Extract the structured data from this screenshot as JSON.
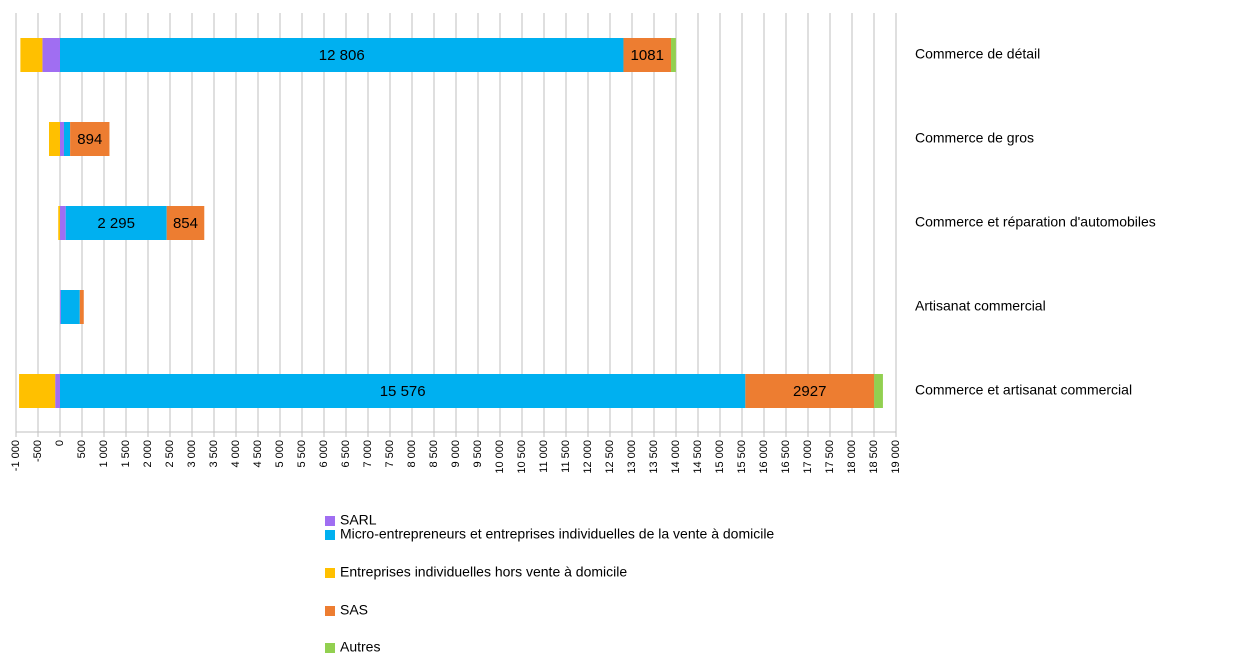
{
  "chart_data": {
    "type": "bar",
    "orientation": "horizontal",
    "stacked": true,
    "categories": [
      "Commerce de détail",
      "Commerce de gros",
      "Commerce et réparation d'automobiles",
      "Artisanat commercial",
      "Commerce et artisanat commercial"
    ],
    "series": [
      {
        "name": "SARL",
        "color": "#a06ef2",
        "values": [
          -400,
          90,
          130,
          20,
          -110
        ]
      },
      {
        "name": "Micro-entrepreneurs et entreprises individuelles de la vente à domicile",
        "color": "#00b0f0",
        "values": [
          12806,
          140,
          2295,
          430,
          15576
        ],
        "value_labels": [
          "12 806",
          null,
          "2 295",
          null,
          "15 576"
        ]
      },
      {
        "name": "Entreprises individuelles hors vente à domicile",
        "color": "#ffc000",
        "values": [
          -500,
          -250,
          -40,
          0,
          -820
        ]
      },
      {
        "name": "SAS",
        "color": "#ed7d31",
        "values": [
          1081,
          894,
          854,
          90,
          2927
        ],
        "value_labels": [
          "1081",
          "894",
          "854",
          null,
          "2927"
        ]
      },
      {
        "name": "Autres",
        "color": "#92d050",
        "values": [
          110,
          0,
          0,
          0,
          200
        ]
      }
    ],
    "xlim": [
      -1000,
      19000
    ],
    "xticks": [
      {
        "value": -1000,
        "label": "-1 000"
      },
      -500,
      0,
      500,
      {
        "value": 1000,
        "label": "1 000"
      },
      {
        "value": 1500,
        "label": "1 500"
      },
      {
        "value": 2000,
        "label": "2 000"
      },
      {
        "value": 2500,
        "label": "2 500"
      },
      {
        "value": 3000,
        "label": "3 000"
      },
      {
        "value": 3500,
        "label": "3 500"
      },
      {
        "value": 4000,
        "label": "4 000"
      },
      {
        "value": 4500,
        "label": "4 500"
      },
      {
        "value": 5000,
        "label": "5 000"
      },
      {
        "value": 5500,
        "label": "5 500"
      },
      {
        "value": 6000,
        "label": "6 000"
      },
      {
        "value": 6500,
        "label": "6 500"
      },
      {
        "value": 7000,
        "label": "7 000"
      },
      {
        "value": 7500,
        "label": "7 500"
      },
      {
        "value": 8000,
        "label": "8 000"
      },
      {
        "value": 8500,
        "label": "8 500"
      },
      {
        "value": 9000,
        "label": "9 000"
      },
      {
        "value": 9500,
        "label": "9 500"
      },
      {
        "value": 10000,
        "label": "10 000"
      },
      {
        "value": 10500,
        "label": "10 500"
      },
      {
        "value": 11000,
        "label": "11 000"
      },
      {
        "value": 11500,
        "label": "11 500"
      },
      {
        "value": 12000,
        "label": "12 000"
      },
      {
        "value": 12500,
        "label": "12 500"
      },
      {
        "value": 13000,
        "label": "13 000"
      },
      {
        "value": 13500,
        "label": "13 500"
      },
      {
        "value": 14000,
        "label": "14 000"
      },
      {
        "value": 14500,
        "label": "14 500"
      },
      {
        "value": 15000,
        "label": "15 000"
      },
      {
        "value": 15500,
        "label": "15 500"
      },
      {
        "value": 16000,
        "label": "16 000"
      },
      {
        "value": 16500,
        "label": "16 500"
      },
      {
        "value": 17000,
        "label": "17 000"
      },
      {
        "value": 17500,
        "label": "17 500"
      },
      {
        "value": 18000,
        "label": "18 000"
      },
      {
        "value": 18500,
        "label": "18 500"
      },
      {
        "value": 19000,
        "label": "19 000"
      }
    ],
    "grid": true,
    "legend": "bottom"
  }
}
